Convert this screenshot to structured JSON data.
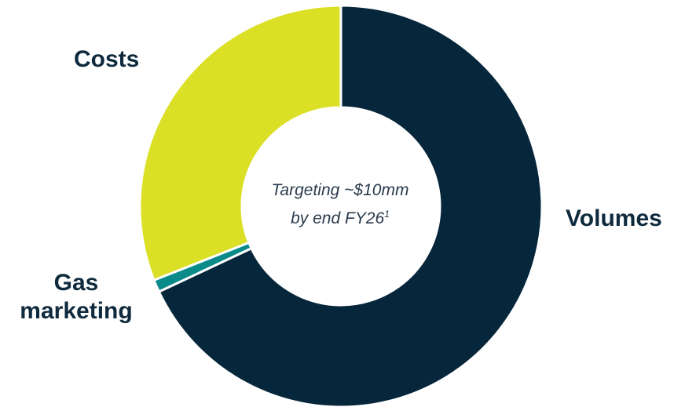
{
  "chart_data": {
    "type": "pie",
    "donut": true,
    "center_text": {
      "line1": "Targeting ~$10mm",
      "line2": "by end FY26",
      "footnote_marker": "1"
    },
    "slices": [
      {
        "label": "Volumes",
        "value": 68,
        "color": "#05263b"
      },
      {
        "label": "Gas marketing",
        "value": 1,
        "color": "#0b8a8a"
      },
      {
        "label": "Costs",
        "value": 31,
        "color": "#dbdf25"
      }
    ],
    "start_angle_deg": 0,
    "direction": "clockwise",
    "legend": "none"
  }
}
